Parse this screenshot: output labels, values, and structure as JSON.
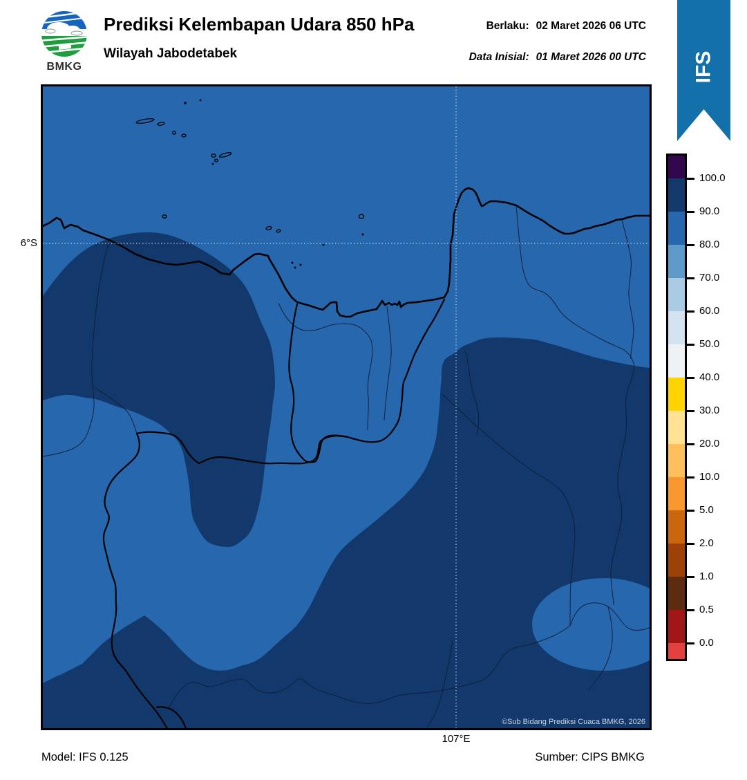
{
  "header": {
    "logo_text": "BMKG",
    "title": "Prediksi Kelembapan Udara 850 hPa",
    "subtitle": "Wilayah Jabodetabek",
    "valid_label": "Berlaku:",
    "valid_value": "02 Maret 2026 06 UTC",
    "initial_label": "Data Inisial:",
    "initial_value": "01 Maret 2026 00 UTC",
    "model_ribbon": "IFS",
    "ribbon_color": "#1470ab"
  },
  "map": {
    "lat_label": "6°S",
    "lon_label": "107°E",
    "copyright": "©Sub Bidang Prediksi Cuaca BMKG, 2026",
    "fill_colors": {
      "humidity_80_90": "#2667ae",
      "humidity_90_100": "#13396c"
    }
  },
  "colorbar": {
    "tick_labels": [
      "100.0",
      "90.0",
      "80.0",
      "70.0",
      "60.0",
      "50.0",
      "40.0",
      "30.0",
      "20.0",
      "10.0",
      "5.0",
      "2.0",
      "1.0",
      "0.5",
      "0.0"
    ],
    "segment_colors_top_to_bottom": [
      "#33074e",
      "#13396c",
      "#2667ae",
      "#5d9ac9",
      "#a9cbe3",
      "#d3e4f0",
      "#eef2f5",
      "#ffd400",
      "#ffe294",
      "#ffc05c",
      "#f8982d",
      "#cc660e",
      "#9c4207",
      "#5d2c10",
      "#a11616",
      "#e34040"
    ]
  },
  "footer": {
    "model": "Model: IFS 0.125",
    "source": "Sumber: CIPS BMKG"
  }
}
